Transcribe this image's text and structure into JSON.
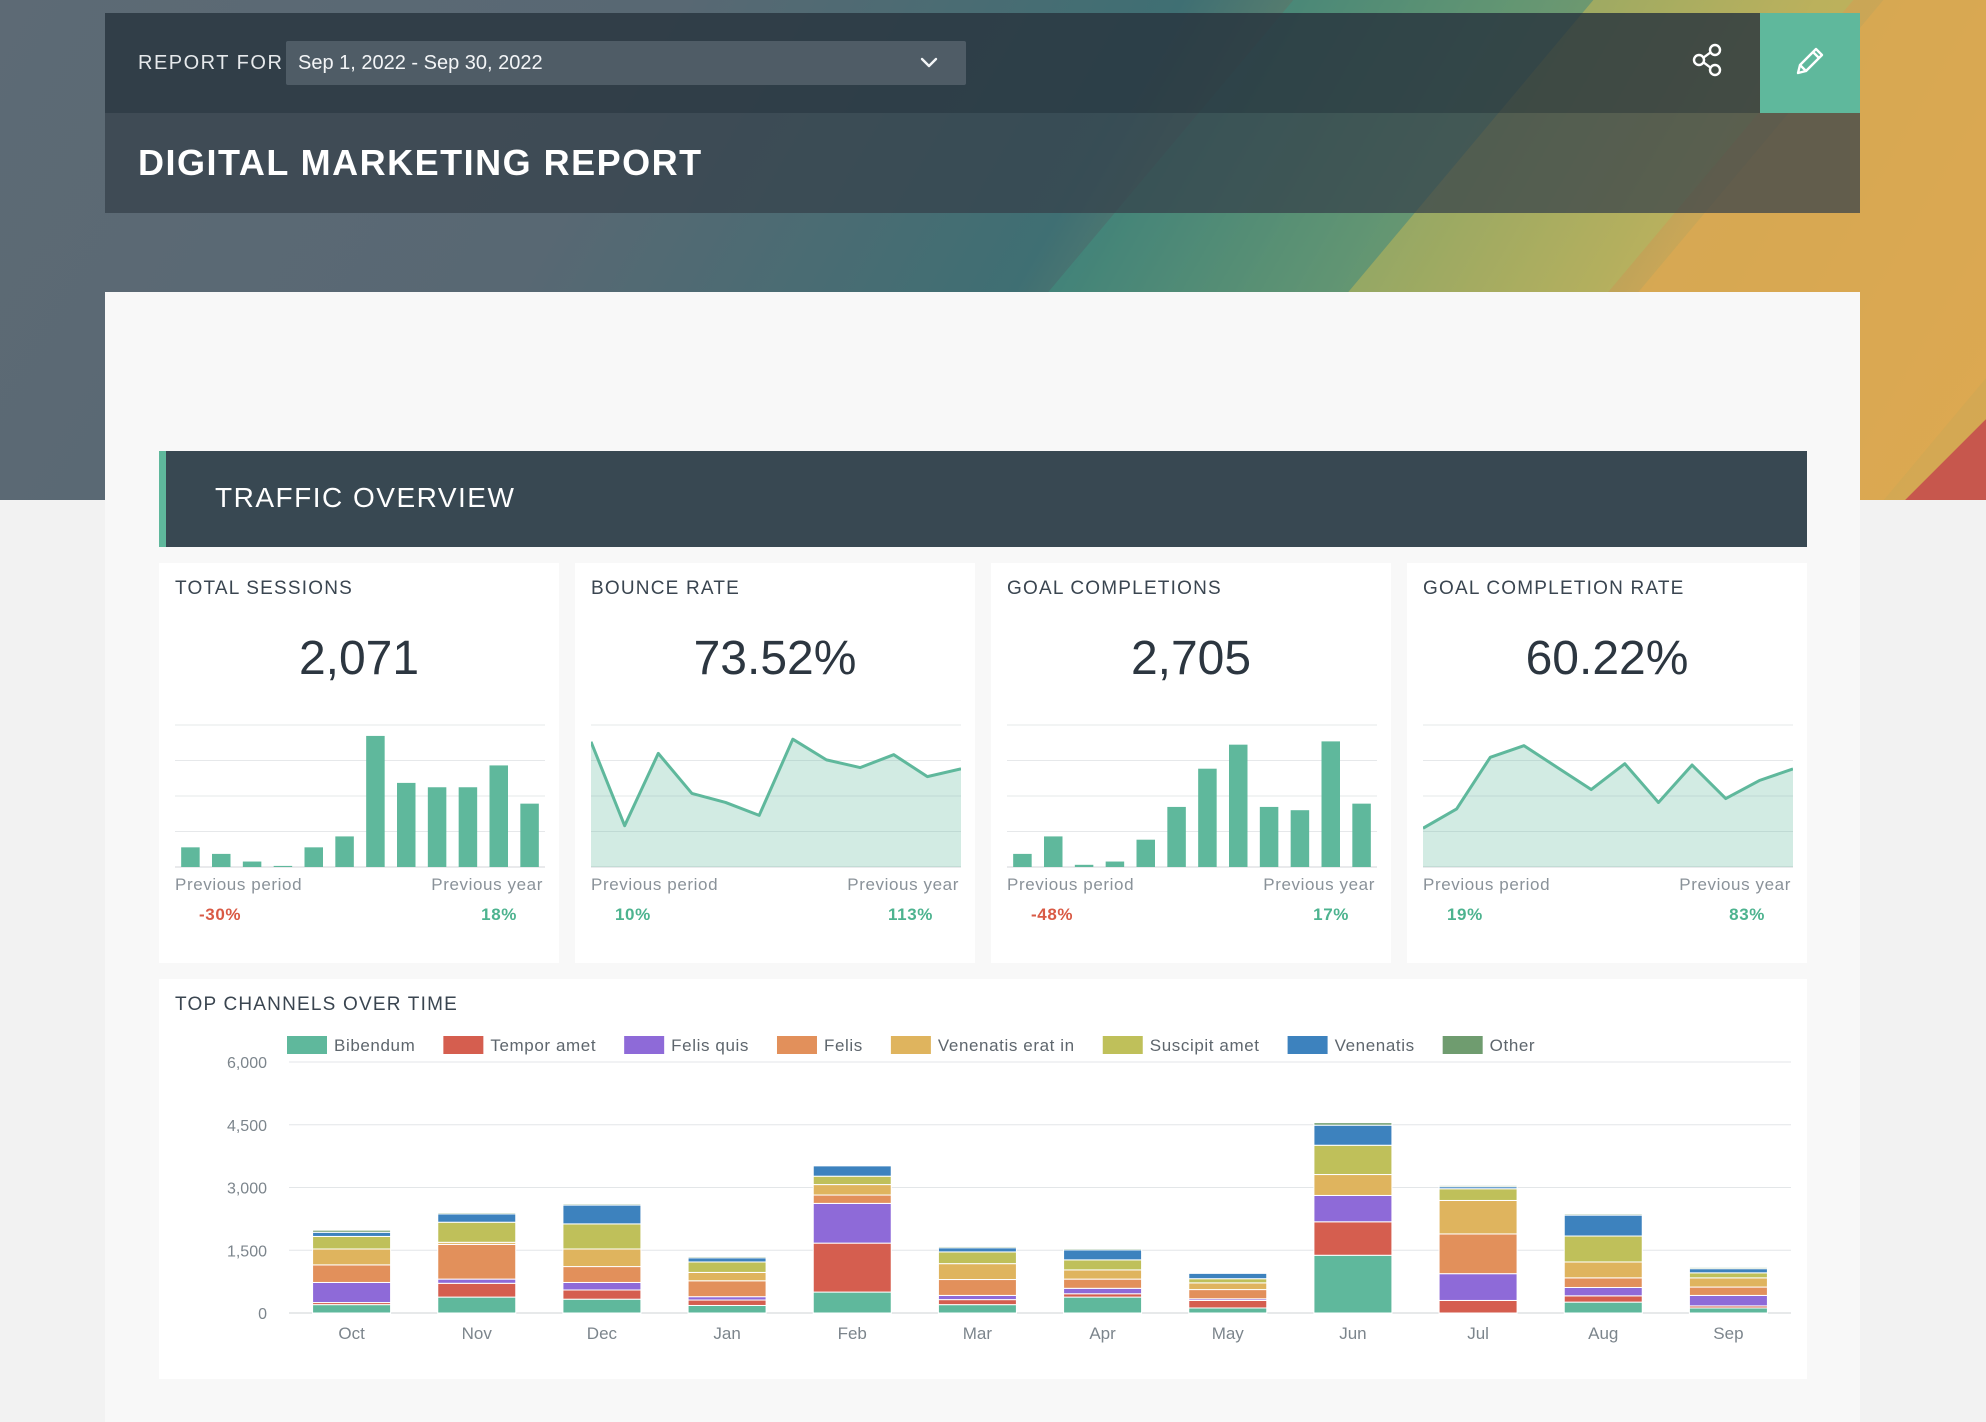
{
  "header": {
    "report_for_label": "REPORT FOR",
    "date_range": "Sep 1, 2022 - Sep 30, 2022",
    "title": "DIGITAL MARKETING REPORT",
    "share_icon": "share-icon",
    "edit_icon": "pencil-icon"
  },
  "colors": {
    "accent": "#5fb89c",
    "negative": "#d95a45",
    "positive": "#4db38f",
    "header_dark": "#384852"
  },
  "section": {
    "title": "TRAFFIC OVERVIEW"
  },
  "kpis": [
    {
      "label": "TOTAL SESSIONS",
      "value": "2,071",
      "prev_period_label": "Previous period",
      "prev_period_value": "-30%",
      "prev_period_trend": "negative",
      "prev_year_label": "Previous year",
      "prev_year_value": "18%",
      "prev_year_trend": "positive"
    },
    {
      "label": "BOUNCE RATE",
      "value": "73.52%",
      "prev_period_label": "Previous period",
      "prev_period_value": "10%",
      "prev_period_trend": "positive",
      "prev_year_label": "Previous year",
      "prev_year_value": "113%",
      "prev_year_trend": "positive"
    },
    {
      "label": "GOAL COMPLETIONS",
      "value": "2,705",
      "prev_period_label": "Previous period",
      "prev_period_value": "-48%",
      "prev_period_trend": "negative",
      "prev_year_label": "Previous year",
      "prev_year_value": "17%",
      "prev_year_trend": "positive"
    },
    {
      "label": "GOAL COMPLETION RATE",
      "value": "60.22%",
      "prev_period_label": "Previous period",
      "prev_period_value": "19%",
      "prev_period_trend": "positive",
      "prev_year_label": "Previous year",
      "prev_year_value": "83%",
      "prev_year_trend": "positive"
    }
  ],
  "chart_data": [
    {
      "type": "bar",
      "values": [
        18,
        12,
        5,
        1,
        18,
        28,
        120,
        77,
        73,
        73,
        93,
        58
      ],
      "ylim": [
        0,
        130
      ],
      "color": "#5fb89c"
    },
    {
      "type": "area",
      "values": [
        97,
        32,
        88,
        57,
        50,
        40,
        99,
        83,
        77,
        87,
        70,
        76
      ],
      "ylim": [
        0,
        110
      ],
      "color": "#5fb89c"
    },
    {
      "type": "bar",
      "values": [
        12,
        28,
        2,
        5,
        25,
        55,
        90,
        112,
        55,
        52,
        115,
        58
      ],
      "ylim": [
        0,
        130
      ],
      "color": "#5fb89c"
    },
    {
      "type": "area",
      "values": [
        30,
        45,
        85,
        94,
        77,
        60,
        80,
        50,
        79,
        53,
        67,
        76
      ],
      "ylim": [
        0,
        110
      ],
      "color": "#5fb89c"
    },
    {
      "type": "stacked-bar",
      "title": "TOP CHANNELS OVER TIME",
      "categories": [
        "Oct",
        "Nov",
        "Dec",
        "Jan",
        "Feb",
        "Mar",
        "Apr",
        "May",
        "Jun",
        "Jul",
        "Aug",
        "Sep"
      ],
      "yticks": [
        "0",
        "1,500",
        "3,000",
        "4,500",
        "6,000"
      ],
      "ylim": [
        0,
        6000
      ],
      "legend_position": "top",
      "series": [
        {
          "name": "Bibendum",
          "color": "#5fb89c",
          "values": [
            200,
            380,
            330,
            180,
            500,
            200,
            380,
            120,
            1380,
            0,
            260,
            120
          ]
        },
        {
          "name": "Tempor amet",
          "color": "#d55e4f",
          "values": [
            50,
            330,
            220,
            130,
            1170,
            120,
            80,
            180,
            800,
            300,
            150,
            50
          ]
        },
        {
          "name": "Felis quis",
          "color": "#8e6ad8",
          "values": [
            480,
            100,
            180,
            80,
            950,
            100,
            130,
            40,
            630,
            640,
            200,
            250
          ]
        },
        {
          "name": "Felis",
          "color": "#e2905b",
          "values": [
            420,
            830,
            380,
            380,
            200,
            380,
            220,
            220,
            0,
            950,
            230,
            200
          ]
        },
        {
          "name": "Venenatis erat in",
          "color": "#dfb45e",
          "values": [
            380,
            50,
            420,
            200,
            250,
            380,
            220,
            160,
            500,
            800,
            380,
            220
          ]
        },
        {
          "name": "Suscipit amet",
          "color": "#bfc05a",
          "values": [
            300,
            480,
            600,
            250,
            200,
            280,
            240,
            100,
            700,
            280,
            620,
            120
          ]
        },
        {
          "name": "Venenatis",
          "color": "#3d82be",
          "values": [
            100,
            200,
            450,
            100,
            250,
            100,
            240,
            130,
            480,
            50,
            500,
            100
          ]
        },
        {
          "name": "Other",
          "color": "#6f9c6f",
          "values": [
            50,
            30,
            30,
            30,
            20,
            30,
            30,
            20,
            60,
            30,
            30,
            30
          ]
        }
      ]
    }
  ]
}
